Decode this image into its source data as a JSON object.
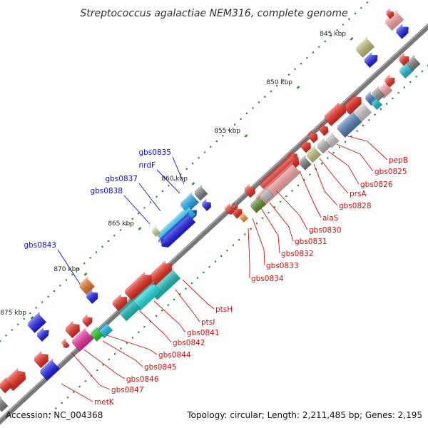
{
  "title": "Streptococcus agalactiae NEM316, complete genome",
  "footer": {
    "accession": "Accession: NC_004368",
    "summary": "Topology: circular; Length: 2,211,485 bp; Genes: 2,195"
  },
  "colors": {
    "backbone": "#777777",
    "forward_label": "#d01010",
    "reverse_label": "#1010c8",
    "tick": "#2a8a2a"
  },
  "kbp_labels": [
    "845 kbp",
    "850 kbp",
    "855 kbp",
    "860 kbp",
    "865 kbp",
    "870 kbp",
    "875 kbp"
  ],
  "reverse_labels": [
    "gbs0835",
    "nrdF",
    "gbs0837",
    "gbs0838",
    "gbs0843"
  ],
  "forward_labels": [
    "pepB",
    "gbs0825",
    "gbs0826",
    "prsA",
    "gbs0828",
    "alaS",
    "gbs0830",
    "gbs0831",
    "gbs0832",
    "gbs0833",
    "gbs0834",
    "ptsH",
    "ptsI",
    "gbs0841",
    "gbs0842",
    "gbs0844",
    "gbs0845",
    "gbs0846",
    "gbs0847",
    "metK"
  ]
}
